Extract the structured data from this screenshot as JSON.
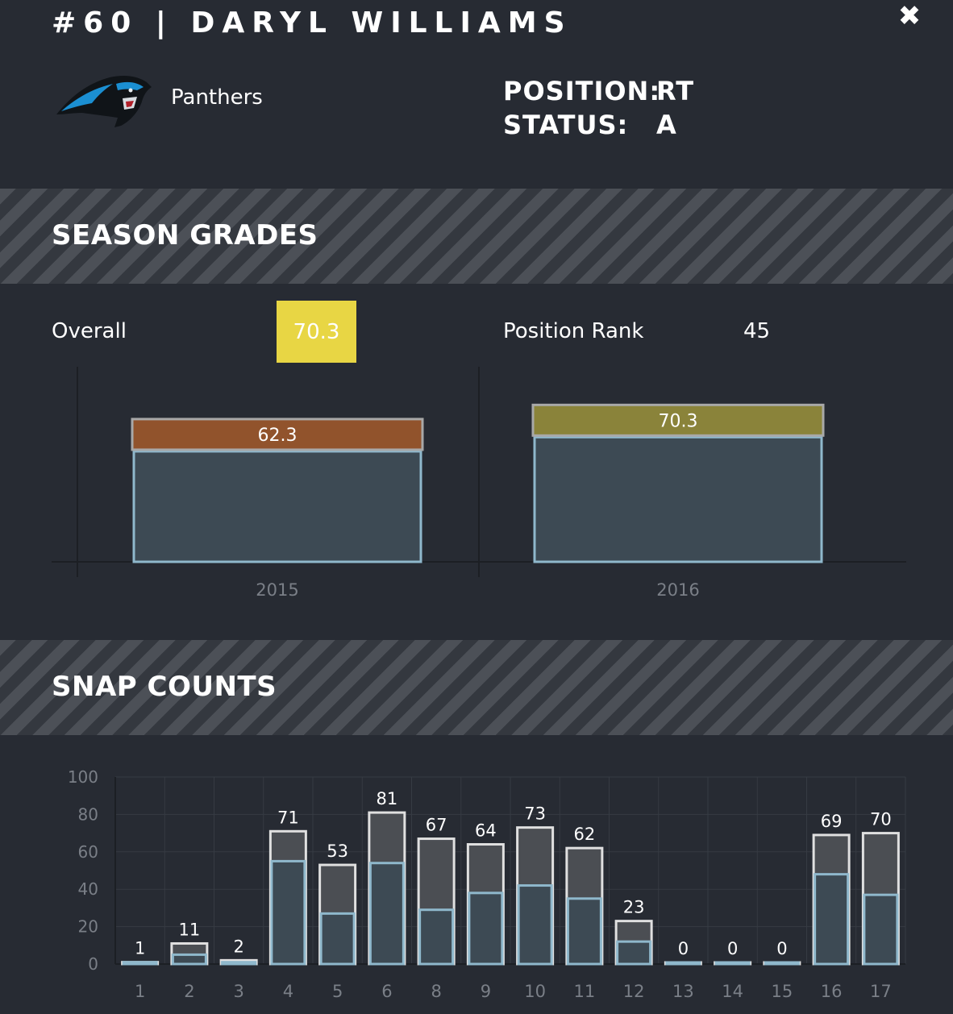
{
  "header": {
    "title": "#60 | DARYL WILLIAMS",
    "team": "Panthers",
    "position_label": "POSITION:",
    "position_value": "RT",
    "status_label": "STATUS:",
    "status_value": "A"
  },
  "season_grades": {
    "heading": "SEASON GRADES",
    "overall_label": "Overall",
    "overall_value": "70.3",
    "rank_label": "Position Rank",
    "rank_value": "45"
  },
  "snap_counts": {
    "heading": "SNAP COUNTS"
  },
  "colors": {
    "background": "#272b33",
    "overall_badge": "#e8d644",
    "grade_2015": "#91532c",
    "grade_2016": "#8a833a",
    "bar_fill": "#3d4a54",
    "bar_outline": "#8fb8cc",
    "snap_total_fill": "#4b4e53",
    "snap_total_outline": "#e0e0e0"
  },
  "icons": [
    "close-icon",
    "panthers-logo"
  ],
  "chart_data": [
    {
      "type": "bar",
      "categories": [
        "2015",
        "2016"
      ],
      "values": [
        62.3,
        70.3
      ],
      "labels": [
        "62.3",
        "70.3"
      ],
      "ylim": [
        0,
        100
      ],
      "grid": false
    },
    {
      "type": "bar",
      "categories": [
        "1",
        "2",
        "3",
        "4",
        "5",
        "6",
        "8",
        "9",
        "10",
        "11",
        "12",
        "13",
        "14",
        "15",
        "16",
        "17"
      ],
      "series": [
        {
          "values": [
            1,
            11,
            2,
            71,
            53,
            81,
            67,
            64,
            73,
            62,
            23,
            0,
            0,
            0,
            69,
            70
          ]
        },
        {
          "values": [
            1,
            5,
            1,
            55,
            27,
            54,
            29,
            38,
            42,
            35,
            12,
            0,
            0,
            0,
            48,
            37
          ]
        }
      ],
      "yticks": [
        "0",
        "20",
        "40",
        "60",
        "80",
        "100"
      ],
      "ylim": [
        0,
        100
      ],
      "grid": true
    }
  ]
}
